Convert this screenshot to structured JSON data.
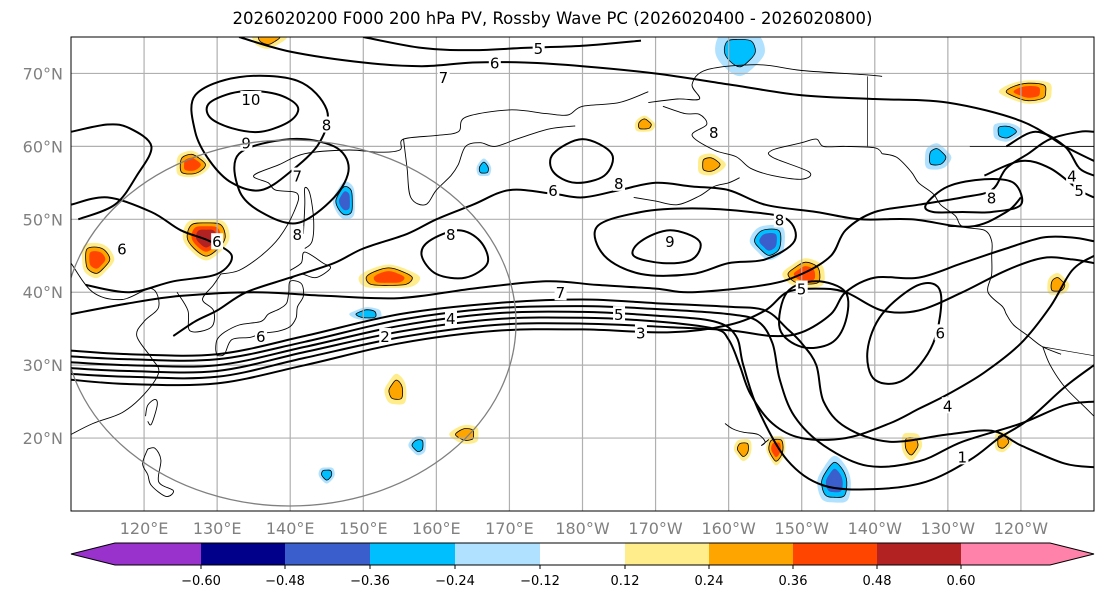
{
  "title": "2026020200 F000 200 hPa PV, Rossby Wave PC (2026020400 - 2026020800)",
  "chart_data": {
    "type": "heatmap",
    "subtype": "map-filled-contour-with-line-contours",
    "title": "2026020200 F000 200 hPa PV, Rossby Wave PC (2026020400 - 2026020800)",
    "extent": {
      "lon_min": 110,
      "lon_max": 250,
      "lat_min": 10,
      "lat_max": 75
    },
    "x_ticks": [
      {
        "lon": 120,
        "label": "120°E"
      },
      {
        "lon": 130,
        "label": "130°E"
      },
      {
        "lon": 140,
        "label": "140°E"
      },
      {
        "lon": 150,
        "label": "150°E"
      },
      {
        "lon": 160,
        "label": "160°E"
      },
      {
        "lon": 170,
        "label": "170°E"
      },
      {
        "lon": 180,
        "label": "180°W"
      },
      {
        "lon": 190,
        "label": "170°W"
      },
      {
        "lon": 200,
        "label": "160°W"
      },
      {
        "lon": 210,
        "label": "150°W"
      },
      {
        "lon": 220,
        "label": "140°W"
      },
      {
        "lon": 230,
        "label": "130°W"
      },
      {
        "lon": 240,
        "label": "120°W"
      }
    ],
    "y_ticks": [
      {
        "lat": 20,
        "label": "20°N"
      },
      {
        "lat": 30,
        "label": "30°N"
      },
      {
        "lat": 40,
        "label": "40°N"
      },
      {
        "lat": 50,
        "label": "50°N"
      },
      {
        "lat": 60,
        "label": "60°N"
      },
      {
        "lat": 70,
        "label": "70°N"
      }
    ],
    "grid": true,
    "colorbar": {
      "orientation": "horizontal",
      "placement": "bottom",
      "extend": "both",
      "levels": [
        -0.6,
        -0.48,
        -0.36,
        -0.24,
        -0.12,
        0.12,
        0.24,
        0.36,
        0.48,
        0.6
      ],
      "tick_labels": [
        "−0.60",
        "−0.48",
        "−0.36",
        "−0.24",
        "−0.12",
        "0.12",
        "0.24",
        "0.36",
        "0.48",
        "0.60"
      ],
      "colors": [
        "#9932cc",
        "#00008b",
        "#3a5fcd",
        "#00bfff",
        "#b0e2ff",
        "#ffffff",
        "#ffec8b",
        "#ffa500",
        "#ff4500",
        "#b22222",
        "#ff82ab"
      ]
    },
    "pv_contour_labels": [
      {
        "value": "5",
        "lon": 174,
        "lat": 73.5
      },
      {
        "value": "6",
        "lon": 168,
        "lat": 71.5
      },
      {
        "value": "7",
        "lon": 161,
        "lat": 69.5
      },
      {
        "value": "10",
        "lon": 134,
        "lat": 66.5
      },
      {
        "value": "9",
        "lon": 134,
        "lat": 60.5
      },
      {
        "value": "8",
        "lon": 145,
        "lat": 63
      },
      {
        "value": "7",
        "lon": 141,
        "lat": 56
      },
      {
        "value": "8",
        "lon": 141,
        "lat": 48
      },
      {
        "value": "8",
        "lon": 162,
        "lat": 48
      },
      {
        "value": "6",
        "lon": 130,
        "lat": 47
      },
      {
        "value": "6",
        "lon": 117,
        "lat": 46
      },
      {
        "value": "8",
        "lon": 185,
        "lat": 55
      },
      {
        "value": "6",
        "lon": 176,
        "lat": 54
      },
      {
        "value": "8",
        "lon": 198,
        "lat": 62
      },
      {
        "value": "8",
        "lon": 207,
        "lat": 50
      },
      {
        "value": "9",
        "lon": 192,
        "lat": 47
      },
      {
        "value": "8",
        "lon": 236,
        "lat": 53
      },
      {
        "value": "4",
        "lon": 247,
        "lat": 56
      },
      {
        "value": "5",
        "lon": 248,
        "lat": 54
      },
      {
        "value": "7",
        "lon": 177,
        "lat": 40
      },
      {
        "value": "5",
        "lon": 185,
        "lat": 37
      },
      {
        "value": "4",
        "lon": 162,
        "lat": 36.5
      },
      {
        "value": "3",
        "lon": 188,
        "lat": 34.5
      },
      {
        "value": "2",
        "lon": 153,
        "lat": 34
      },
      {
        "value": "6",
        "lon": 136,
        "lat": 34
      },
      {
        "value": "5",
        "lon": 210,
        "lat": 40.5
      },
      {
        "value": "6",
        "lon": 229,
        "lat": 34.5
      },
      {
        "value": "4",
        "lon": 230,
        "lat": 24.5
      },
      {
        "value": "1",
        "lon": 232,
        "lat": 17.5
      }
    ],
    "anomaly_features": [
      {
        "sign": "positive",
        "max_level": "0.48",
        "lon": 128.5,
        "lat": 47.5
      },
      {
        "sign": "positive",
        "max_level": "0.36",
        "lon": 113.5,
        "lat": 44.5
      },
      {
        "sign": "positive",
        "max_level": "0.36",
        "lon": 126.5,
        "lat": 57.5
      },
      {
        "sign": "positive",
        "max_level": "0.36",
        "lon": 153.5,
        "lat": 42
      },
      {
        "sign": "positive",
        "max_level": "0.36",
        "lon": 210.5,
        "lat": 42.5
      },
      {
        "sign": "positive",
        "max_level": "0.36",
        "lon": 241,
        "lat": 67.5
      },
      {
        "sign": "positive",
        "max_level": "0.36",
        "lon": 206.5,
        "lat": 18.5
      },
      {
        "sign": "positive",
        "max_level": "0.24",
        "lon": 137,
        "lat": 75
      },
      {
        "sign": "positive",
        "max_level": "0.24",
        "lon": 197.5,
        "lat": 57.5
      },
      {
        "sign": "positive",
        "max_level": "0.24",
        "lon": 188.5,
        "lat": 63
      },
      {
        "sign": "positive",
        "max_level": "0.24",
        "lon": 154.5,
        "lat": 26.5
      },
      {
        "sign": "positive",
        "max_level": "0.24",
        "lon": 164,
        "lat": 20.5
      },
      {
        "sign": "positive",
        "max_level": "0.24",
        "lon": 202,
        "lat": 18.5
      },
      {
        "sign": "positive",
        "max_level": "0.24",
        "lon": 225,
        "lat": 19
      },
      {
        "sign": "positive",
        "max_level": "0.24",
        "lon": 237.5,
        "lat": 19.5
      },
      {
        "sign": "positive",
        "max_level": "0.24",
        "lon": 245,
        "lat": 41
      },
      {
        "sign": "negative",
        "min_level": "-0.48",
        "lon": 214.5,
        "lat": 14
      },
      {
        "sign": "negative",
        "min_level": "-0.48",
        "lon": 147.5,
        "lat": 52.5
      },
      {
        "sign": "negative",
        "min_level": "-0.48",
        "lon": 205.5,
        "lat": 47
      },
      {
        "sign": "negative",
        "min_level": "-0.36",
        "lon": 201.5,
        "lat": 73
      },
      {
        "sign": "negative",
        "min_level": "-0.36",
        "lon": 238,
        "lat": 62
      },
      {
        "sign": "negative",
        "min_level": "-0.36",
        "lon": 228.5,
        "lat": 58.5
      },
      {
        "sign": "negative",
        "min_level": "-0.36",
        "lon": 166.5,
        "lat": 57
      },
      {
        "sign": "negative",
        "min_level": "-0.36",
        "lon": 150.5,
        "lat": 37
      },
      {
        "sign": "negative",
        "min_level": "-0.36",
        "lon": 157.5,
        "lat": 19
      },
      {
        "sign": "negative",
        "min_level": "-0.36",
        "lon": 145,
        "lat": 15
      }
    ],
    "reference_circle": true
  }
}
